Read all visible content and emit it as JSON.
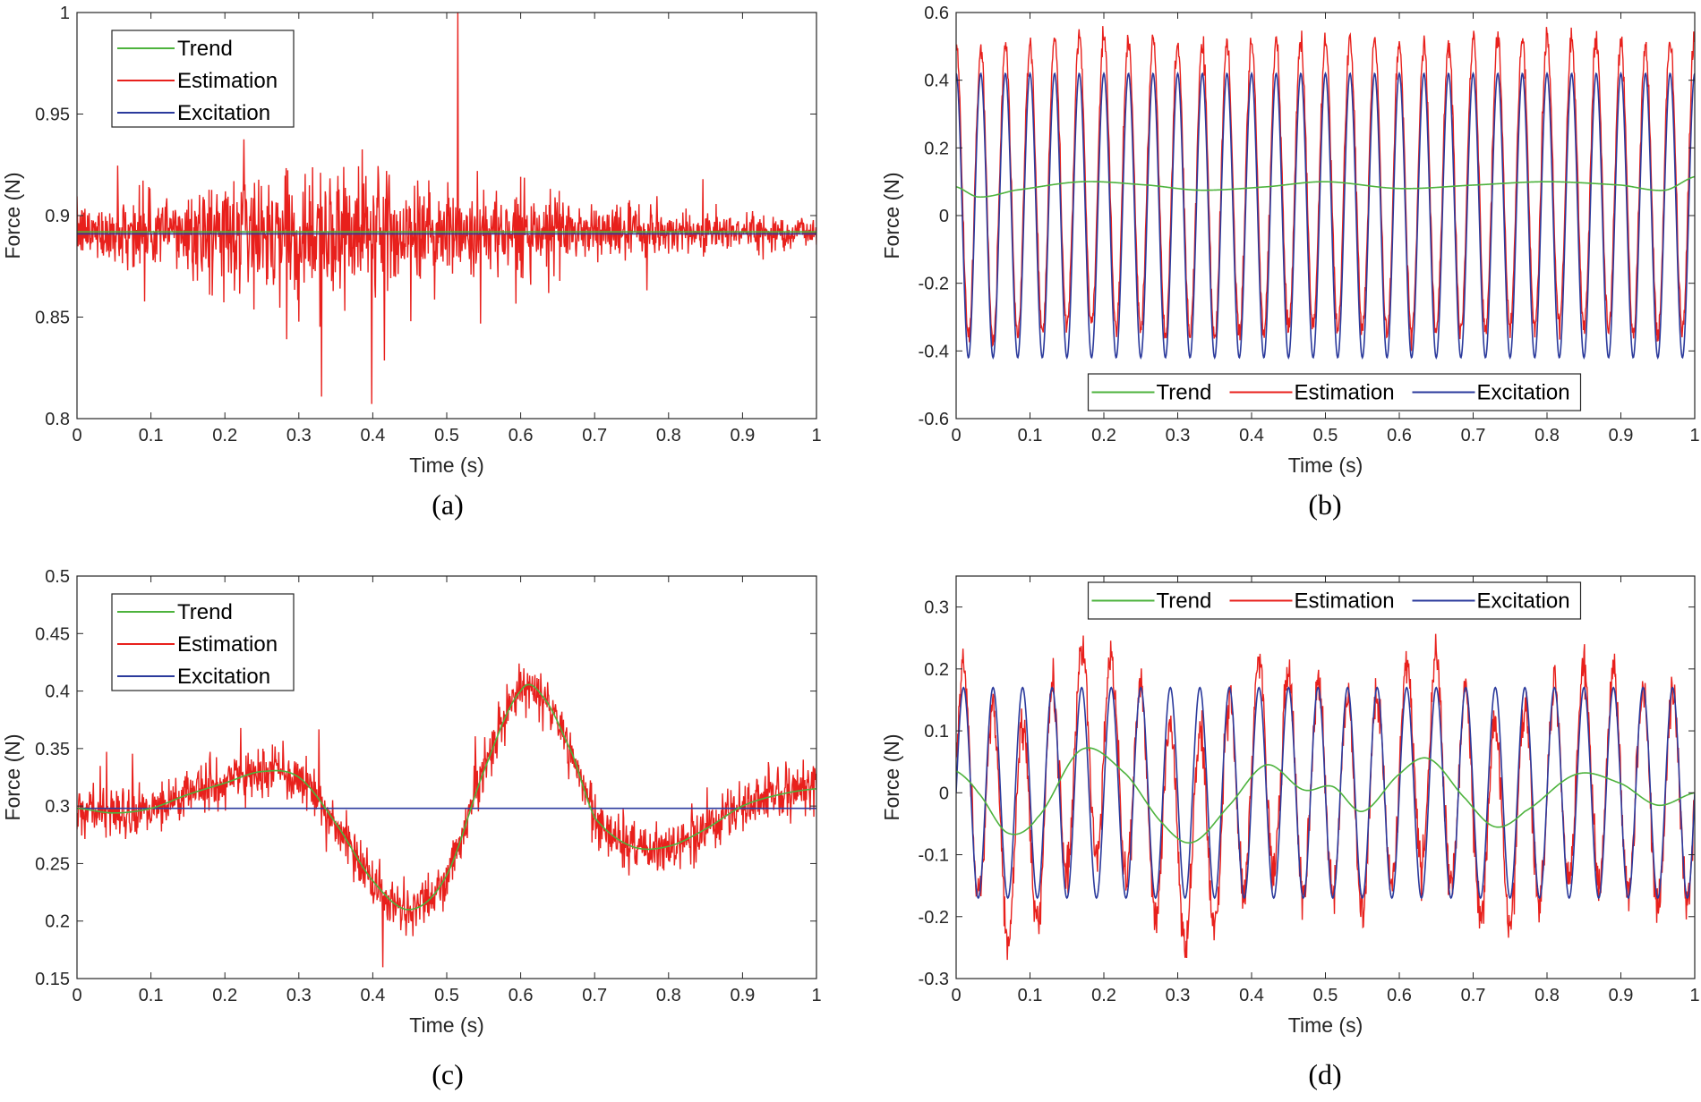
{
  "colors": {
    "trend": "#4db33d",
    "estimation": "#e8201c",
    "excitation": "#2b3a9c",
    "axis": "#262626"
  },
  "chart_data": [
    {
      "type": "line",
      "caption": "(a)",
      "xlabel": "Time (s)",
      "ylabel": "Force (N)",
      "xlim": [
        0,
        1
      ],
      "ylim": [
        0.8,
        1
      ],
      "xticks": [
        0,
        0.1,
        0.2,
        0.3,
        0.4,
        0.5,
        0.6,
        0.7,
        0.8,
        0.9,
        1
      ],
      "xtick_labels": [
        "0",
        "0.1",
        "0.2",
        "0.3",
        "0.4",
        "0.5",
        "0.6",
        "0.7",
        "0.8",
        "0.9",
        "1"
      ],
      "yticks": [
        0.8,
        0.85,
        0.9,
        0.95,
        1
      ],
      "ytick_labels": [
        "0.8",
        "0.85",
        "0.9",
        "0.95",
        "1"
      ],
      "legend": {
        "location": "top-left",
        "orientation": "vertical",
        "entries": [
          "Trend",
          "Estimation",
          "Excitation"
        ]
      },
      "series": [
        {
          "name": "Trend",
          "model": {
            "kind": "constant",
            "value": 0.892
          }
        },
        {
          "name": "Estimation",
          "model": {
            "kind": "noisy",
            "base": 0.892,
            "noise_amp": 0.02,
            "envelope": [
              0.7,
              1.0,
              1.5,
              1.7,
              1.6,
              1.3,
              1.0,
              0.8,
              0.6,
              0.5,
              0.45
            ],
            "spike": {
              "t": 0.515,
              "value": 1.0
            }
          }
        },
        {
          "name": "Excitation",
          "model": {
            "kind": "constant",
            "value": 0.891
          }
        }
      ]
    },
    {
      "type": "line",
      "caption": "(b)",
      "xlabel": "Time (s)",
      "ylabel": "Force (N)",
      "xlim": [
        0,
        1
      ],
      "ylim": [
        -0.6,
        0.6
      ],
      "xticks": [
        0,
        0.1,
        0.2,
        0.3,
        0.4,
        0.5,
        0.6,
        0.7,
        0.8,
        0.9,
        1
      ],
      "xtick_labels": [
        "0",
        "0.1",
        "0.2",
        "0.3",
        "0.4",
        "0.5",
        "0.6",
        "0.7",
        "0.8",
        "0.9",
        "1"
      ],
      "yticks": [
        -0.6,
        -0.4,
        -0.2,
        0,
        0.2,
        0.4,
        0.6
      ],
      "ytick_labels": [
        "-0.6",
        "-0.4",
        "-0.2",
        "0",
        "0.2",
        "0.4",
        "0.6"
      ],
      "legend": {
        "location": "bottom-center",
        "orientation": "horizontal",
        "entries": [
          "Trend",
          "Estimation",
          "Excitation"
        ]
      },
      "series": [
        {
          "name": "Trend",
          "model": {
            "kind": "slow",
            "points": [
              [
                0,
                0.085
              ],
              [
                0.03,
                0.055
              ],
              [
                0.08,
                0.075
              ],
              [
                0.17,
                0.1
              ],
              [
                0.26,
                0.09
              ],
              [
                0.33,
                0.075
              ],
              [
                0.42,
                0.085
              ],
              [
                0.5,
                0.1
              ],
              [
                0.6,
                0.08
              ],
              [
                0.7,
                0.09
              ],
              [
                0.8,
                0.1
              ],
              [
                0.9,
                0.09
              ],
              [
                0.96,
                0.075
              ],
              [
                1,
                0.115
              ]
            ]
          }
        },
        {
          "name": "Estimation",
          "model": {
            "kind": "sine_plus_trend",
            "amp": 0.43,
            "freq": 30,
            "phase": 1.57,
            "noise_amp": 0.03
          }
        },
        {
          "name": "Excitation",
          "model": {
            "kind": "sine",
            "amp": 0.42,
            "freq": 30,
            "phase": 1.57,
            "offset": 0
          }
        }
      ]
    },
    {
      "type": "line",
      "caption": "(c)",
      "xlabel": "Time (s)",
      "ylabel": "Force (N)",
      "xlim": [
        0,
        1
      ],
      "ylim": [
        0.15,
        0.5
      ],
      "xticks": [
        0,
        0.1,
        0.2,
        0.3,
        0.4,
        0.5,
        0.6,
        0.7,
        0.8,
        0.9,
        1
      ],
      "xtick_labels": [
        "0",
        "0.1",
        "0.2",
        "0.3",
        "0.4",
        "0.5",
        "0.6",
        "0.7",
        "0.8",
        "0.9",
        "1"
      ],
      "yticks": [
        0.15,
        0.2,
        0.25,
        0.3,
        0.35,
        0.4,
        0.45,
        0.5
      ],
      "ytick_labels": [
        "0.15",
        "0.2",
        "0.25",
        "0.3",
        "0.35",
        "0.4",
        "0.45",
        "0.5"
      ],
      "legend": {
        "location": "top-left",
        "orientation": "vertical",
        "entries": [
          "Trend",
          "Estimation",
          "Excitation"
        ]
      },
      "series": [
        {
          "name": "Trend",
          "model": {
            "kind": "slow",
            "points": [
              [
                0,
                0.298
              ],
              [
                0.05,
                0.294
              ],
              [
                0.1,
                0.298
              ],
              [
                0.15,
                0.31
              ],
              [
                0.2,
                0.32
              ],
              [
                0.25,
                0.33
              ],
              [
                0.3,
                0.325
              ],
              [
                0.35,
                0.285
              ],
              [
                0.4,
                0.235
              ],
              [
                0.45,
                0.21
              ],
              [
                0.5,
                0.24
              ],
              [
                0.55,
                0.33
              ],
              [
                0.6,
                0.4
              ],
              [
                0.63,
                0.395
              ],
              [
                0.67,
                0.345
              ],
              [
                0.7,
                0.29
              ],
              [
                0.75,
                0.265
              ],
              [
                0.8,
                0.265
              ],
              [
                0.85,
                0.28
              ],
              [
                0.9,
                0.3
              ],
              [
                0.95,
                0.31
              ],
              [
                1,
                0.315
              ]
            ]
          }
        },
        {
          "name": "Estimation",
          "model": {
            "kind": "trend_noise",
            "noise_amp": 0.022
          }
        },
        {
          "name": "Excitation",
          "model": {
            "kind": "constant",
            "value": 0.298
          }
        }
      ]
    },
    {
      "type": "line",
      "caption": "(d)",
      "xlabel": "Time (s)",
      "ylabel": "Force (N)",
      "xlim": [
        0,
        1
      ],
      "ylim": [
        -0.3,
        0.35
      ],
      "xticks": [
        0,
        0.1,
        0.2,
        0.3,
        0.4,
        0.5,
        0.6,
        0.7,
        0.8,
        0.9,
        1
      ],
      "xtick_labels": [
        "0",
        "0.1",
        "0.2",
        "0.3",
        "0.4",
        "0.5",
        "0.6",
        "0.7",
        "0.8",
        "0.9",
        "1"
      ],
      "yticks": [
        -0.3,
        -0.2,
        -0.1,
        0,
        0.1,
        0.2,
        0.3
      ],
      "ytick_labels": [
        "-0.3",
        "-0.2",
        "-0.1",
        "0",
        "0.1",
        "0.2",
        "0.3"
      ],
      "legend": {
        "location": "top-center",
        "orientation": "horizontal",
        "entries": [
          "Trend",
          "Estimation",
          "Excitation"
        ]
      },
      "series": [
        {
          "name": "Trend",
          "model": {
            "kind": "slow",
            "points": [
              [
                0,
                0.035
              ],
              [
                0.03,
                0.0
              ],
              [
                0.07,
                -0.065
              ],
              [
                0.11,
                -0.04
              ],
              [
                0.17,
                0.07
              ],
              [
                0.23,
                0.03
              ],
              [
                0.28,
                -0.05
              ],
              [
                0.32,
                -0.08
              ],
              [
                0.37,
                -0.02
              ],
              [
                0.42,
                0.045
              ],
              [
                0.47,
                0.005
              ],
              [
                0.51,
                0.01
              ],
              [
                0.55,
                -0.03
              ],
              [
                0.6,
                0.03
              ],
              [
                0.64,
                0.055
              ],
              [
                0.69,
                -0.01
              ],
              [
                0.73,
                -0.055
              ],
              [
                0.77,
                -0.03
              ],
              [
                0.84,
                0.03
              ],
              [
                0.9,
                0.015
              ],
              [
                0.95,
                -0.02
              ],
              [
                1,
                0.0
              ]
            ]
          }
        },
        {
          "name": "Estimation",
          "model": {
            "kind": "sine_plus_trend",
            "amp": 0.17,
            "freq": 25,
            "phase": 0.0,
            "noise_amp": 0.03
          }
        },
        {
          "name": "Excitation",
          "model": {
            "kind": "sine",
            "amp": 0.17,
            "freq": 25,
            "phase": 0.0,
            "offset": 0
          }
        }
      ]
    }
  ]
}
